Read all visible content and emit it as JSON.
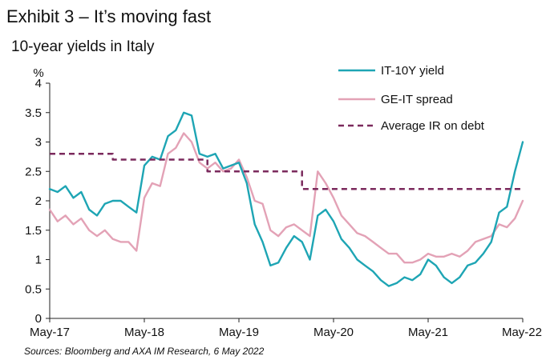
{
  "header": {
    "exhibit_title": "Exhibit 3 – It’s moving fast",
    "subtitle": "10-year yields in Italy"
  },
  "footer": {
    "source": "Sources: Bloomberg and AXA IM Research, 6 May 2022"
  },
  "chart_data": {
    "type": "line",
    "title": "10-year yields in Italy",
    "ylabel": "%",
    "xlabel": "",
    "x_ticks": [
      "May-17",
      "May-18",
      "May-19",
      "May-20",
      "May-21",
      "May-22"
    ],
    "y_ticks": [
      0,
      0.5,
      1,
      1.5,
      2,
      2.5,
      3,
      3.5,
      4
    ],
    "ylim": [
      0,
      4
    ],
    "xlim": [
      "2017-05",
      "2022-05"
    ],
    "grid": false,
    "legend_position": "top-right",
    "series": [
      {
        "name": "IT-10Y yield",
        "color": "#1ea5b4",
        "style": "solid",
        "points": [
          [
            "2017-05",
            2.2
          ],
          [
            "2017-06",
            2.15
          ],
          [
            "2017-07",
            2.25
          ],
          [
            "2017-08",
            2.05
          ],
          [
            "2017-09",
            2.15
          ],
          [
            "2017-10",
            1.85
          ],
          [
            "2017-11",
            1.75
          ],
          [
            "2017-12",
            1.95
          ],
          [
            "2018-01",
            2.0
          ],
          [
            "2018-02",
            2.0
          ],
          [
            "2018-03",
            1.9
          ],
          [
            "2018-04",
            1.8
          ],
          [
            "2018-05",
            2.6
          ],
          [
            "2018-06",
            2.75
          ],
          [
            "2018-07",
            2.7
          ],
          [
            "2018-08",
            3.1
          ],
          [
            "2018-09",
            3.2
          ],
          [
            "2018-10",
            3.5
          ],
          [
            "2018-11",
            3.45
          ],
          [
            "2018-12",
            2.8
          ],
          [
            "2019-01",
            2.75
          ],
          [
            "2019-02",
            2.8
          ],
          [
            "2019-03",
            2.55
          ],
          [
            "2019-04",
            2.6
          ],
          [
            "2019-05",
            2.65
          ],
          [
            "2019-06",
            2.3
          ],
          [
            "2019-07",
            1.6
          ],
          [
            "2019-08",
            1.3
          ],
          [
            "2019-09",
            0.9
          ],
          [
            "2019-10",
            0.95
          ],
          [
            "2019-11",
            1.2
          ],
          [
            "2019-12",
            1.4
          ],
          [
            "2020-01",
            1.3
          ],
          [
            "2020-02",
            1.0
          ],
          [
            "2020-03",
            1.75
          ],
          [
            "2020-04",
            1.85
          ],
          [
            "2020-05",
            1.65
          ],
          [
            "2020-06",
            1.35
          ],
          [
            "2020-07",
            1.2
          ],
          [
            "2020-08",
            1.0
          ],
          [
            "2020-09",
            0.9
          ],
          [
            "2020-10",
            0.8
          ],
          [
            "2020-11",
            0.65
          ],
          [
            "2020-12",
            0.55
          ],
          [
            "2021-01",
            0.6
          ],
          [
            "2021-02",
            0.7
          ],
          [
            "2021-03",
            0.65
          ],
          [
            "2021-04",
            0.75
          ],
          [
            "2021-05",
            1.0
          ],
          [
            "2021-06",
            0.9
          ],
          [
            "2021-07",
            0.7
          ],
          [
            "2021-08",
            0.6
          ],
          [
            "2021-09",
            0.7
          ],
          [
            "2021-10",
            0.9
          ],
          [
            "2021-11",
            0.95
          ],
          [
            "2021-12",
            1.1
          ],
          [
            "2022-01",
            1.3
          ],
          [
            "2022-02",
            1.8
          ],
          [
            "2022-03",
            1.9
          ],
          [
            "2022-04",
            2.5
          ],
          [
            "2022-05",
            3.0
          ]
        ]
      },
      {
        "name": "GE-IT spread",
        "color": "#e3a2b6",
        "style": "solid",
        "points": [
          [
            "2017-05",
            1.85
          ],
          [
            "2017-06",
            1.65
          ],
          [
            "2017-07",
            1.75
          ],
          [
            "2017-08",
            1.6
          ],
          [
            "2017-09",
            1.7
          ],
          [
            "2017-10",
            1.5
          ],
          [
            "2017-11",
            1.4
          ],
          [
            "2017-12",
            1.5
          ],
          [
            "2018-01",
            1.35
          ],
          [
            "2018-02",
            1.3
          ],
          [
            "2018-03",
            1.3
          ],
          [
            "2018-04",
            1.15
          ],
          [
            "2018-05",
            2.05
          ],
          [
            "2018-06",
            2.3
          ],
          [
            "2018-07",
            2.25
          ],
          [
            "2018-08",
            2.8
          ],
          [
            "2018-09",
            2.9
          ],
          [
            "2018-10",
            3.15
          ],
          [
            "2018-11",
            3.0
          ],
          [
            "2018-12",
            2.65
          ],
          [
            "2019-01",
            2.55
          ],
          [
            "2019-02",
            2.65
          ],
          [
            "2019-03",
            2.5
          ],
          [
            "2019-04",
            2.55
          ],
          [
            "2019-05",
            2.7
          ],
          [
            "2019-06",
            2.4
          ],
          [
            "2019-07",
            2.0
          ],
          [
            "2019-08",
            1.95
          ],
          [
            "2019-09",
            1.5
          ],
          [
            "2019-10",
            1.4
          ],
          [
            "2019-11",
            1.55
          ],
          [
            "2019-12",
            1.6
          ],
          [
            "2020-01",
            1.5
          ],
          [
            "2020-02",
            1.4
          ],
          [
            "2020-03",
            2.5
          ],
          [
            "2020-04",
            2.3
          ],
          [
            "2020-05",
            2.05
          ],
          [
            "2020-06",
            1.75
          ],
          [
            "2020-07",
            1.6
          ],
          [
            "2020-08",
            1.45
          ],
          [
            "2020-09",
            1.4
          ],
          [
            "2020-10",
            1.3
          ],
          [
            "2020-11",
            1.2
          ],
          [
            "2020-12",
            1.1
          ],
          [
            "2021-01",
            1.1
          ],
          [
            "2021-02",
            0.95
          ],
          [
            "2021-03",
            0.95
          ],
          [
            "2021-04",
            1.0
          ],
          [
            "2021-05",
            1.1
          ],
          [
            "2021-06",
            1.05
          ],
          [
            "2021-07",
            1.05
          ],
          [
            "2021-08",
            1.1
          ],
          [
            "2021-09",
            1.05
          ],
          [
            "2021-10",
            1.15
          ],
          [
            "2021-11",
            1.3
          ],
          [
            "2021-12",
            1.35
          ],
          [
            "2022-01",
            1.4
          ],
          [
            "2022-02",
            1.6
          ],
          [
            "2022-03",
            1.55
          ],
          [
            "2022-04",
            1.7
          ],
          [
            "2022-05",
            2.0
          ]
        ]
      },
      {
        "name": "Average IR on debt",
        "color": "#7b2a5d",
        "style": "dashed",
        "points": [
          [
            "2017-05",
            2.8
          ],
          [
            "2018-01",
            2.8
          ],
          [
            "2018-01",
            2.7
          ],
          [
            "2019-01",
            2.7
          ],
          [
            "2019-01",
            2.5
          ],
          [
            "2020-01",
            2.5
          ],
          [
            "2020-01",
            2.2
          ],
          [
            "2022-05",
            2.2
          ]
        ]
      }
    ]
  }
}
